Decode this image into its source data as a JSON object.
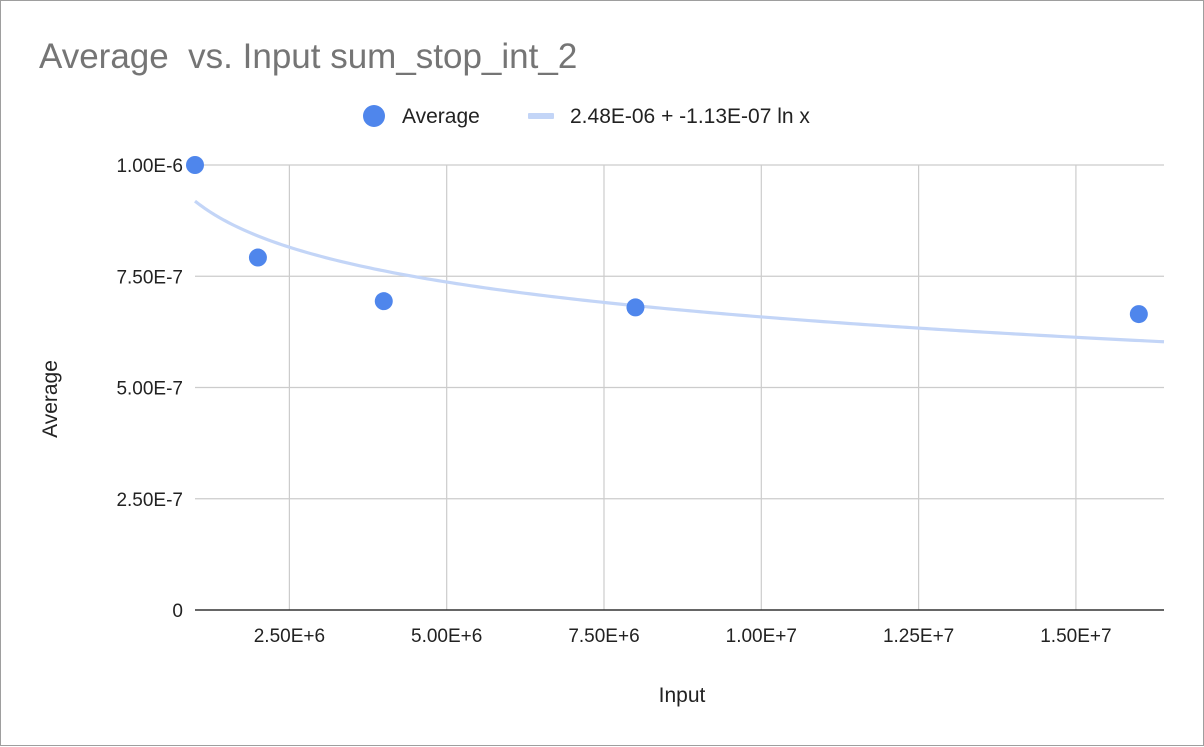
{
  "chart_data": {
    "type": "scatter",
    "title": "Average  vs. Input sum_stop_int_2",
    "xlabel": "Input",
    "ylabel": "Average",
    "xlim": [
      1000000,
      16400000
    ],
    "ylim": [
      0,
      1e-06
    ],
    "x_ticks": [
      {
        "value": 2500000,
        "label": "2.50E+6"
      },
      {
        "value": 5000000,
        "label": "5.00E+6"
      },
      {
        "value": 7500000,
        "label": "7.50E+6"
      },
      {
        "value": 10000000,
        "label": "1.00E+7"
      },
      {
        "value": 12500000,
        "label": "1.25E+7"
      },
      {
        "value": 15000000,
        "label": "1.50E+7"
      }
    ],
    "y_ticks": [
      {
        "value": 0,
        "label": "0"
      },
      {
        "value": 2.5e-07,
        "label": "2.50E-7"
      },
      {
        "value": 5e-07,
        "label": "5.00E-7"
      },
      {
        "value": 7.5e-07,
        "label": "7.50E-7"
      },
      {
        "value": 1e-06,
        "label": "1.00E-6"
      }
    ],
    "grid": true,
    "legend_position": "top",
    "series": [
      {
        "name": "Average",
        "type": "scatter",
        "color": "#4f86ec",
        "points": [
          {
            "x": 1000000,
            "y": 1e-06
          },
          {
            "x": 2000000,
            "y": 7.92e-07
          },
          {
            "x": 4000000,
            "y": 6.94e-07
          },
          {
            "x": 8000000,
            "y": 6.8e-07
          },
          {
            "x": 16000000,
            "y": 6.65e-07
          }
        ]
      },
      {
        "name": "2.48E-06 + -1.13E-07 ln x",
        "type": "trendline",
        "color": "#c3d5f7",
        "model": "logarithmic",
        "intercept": 2.48e-06,
        "coefficient": -1.13e-07,
        "x_range": [
          1000000,
          16400000
        ]
      }
    ]
  }
}
